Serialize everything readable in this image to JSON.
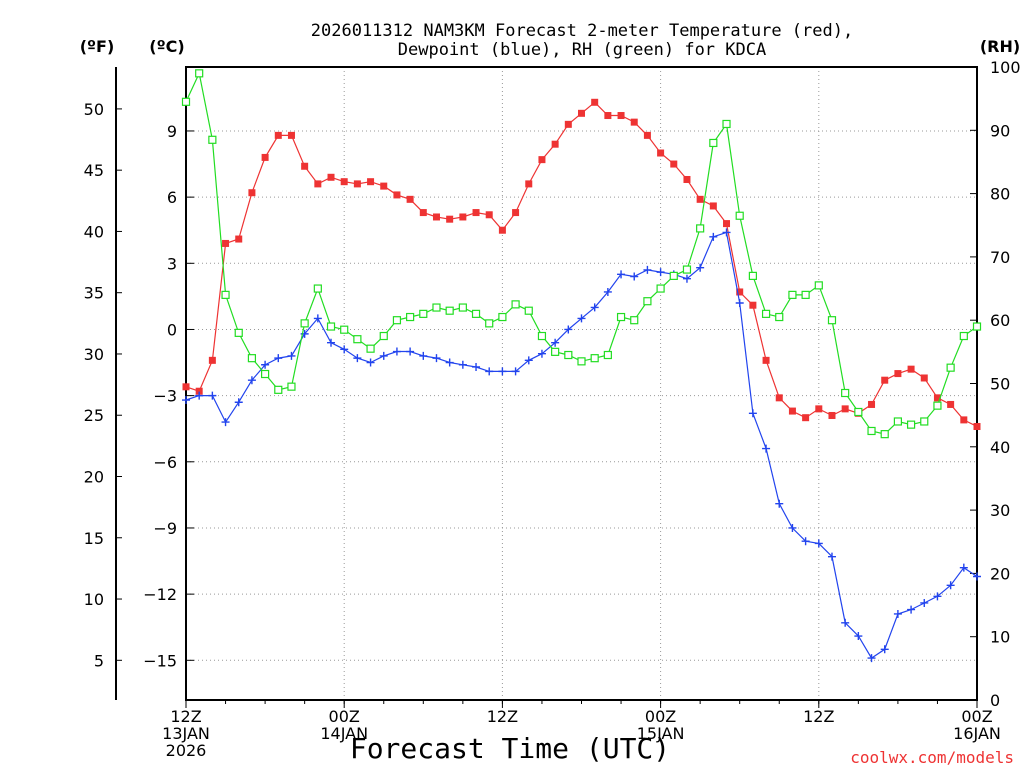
{
  "chart_data": {
    "type": "line",
    "title": [
      "2026011312 NAM3KM Forecast 2-meter Temperature (red),",
      "Dewpoint (blue), RH (green) for KDCA"
    ],
    "xlabel": "Forecast Time (UTC)",
    "credit": "coolwx.com/models",
    "units": {
      "fahrenheit": "(ºF)",
      "celsius": "(ºC)",
      "rh": "(RH)"
    },
    "x_range_hours": [
      0,
      60
    ],
    "x_ticks": [
      {
        "h": 0,
        "lines": [
          "12Z",
          "13JAN",
          "2026"
        ]
      },
      {
        "h": 12,
        "lines": [
          "00Z",
          "14JAN"
        ]
      },
      {
        "h": 24,
        "lines": [
          "12Z"
        ]
      },
      {
        "h": 36,
        "lines": [
          "00Z",
          "15JAN"
        ]
      },
      {
        "h": 48,
        "lines": [
          "12Z"
        ]
      },
      {
        "h": 60,
        "lines": [
          "00Z",
          "16JAN"
        ]
      }
    ],
    "celsius_axis": {
      "range": [
        -16.8,
        11.9
      ],
      "ticks": [
        "9",
        "6",
        "3",
        "0",
        "−3",
        "−6",
        "−9",
        "−12",
        "−15"
      ]
    },
    "fahrenheit_axis": {
      "ticks": [
        "50",
        "45",
        "40",
        "35",
        "30",
        "25",
        "20",
        "15",
        "10",
        "5"
      ]
    },
    "rh_axis": {
      "range": [
        0,
        100
      ],
      "ticks": [
        "100",
        "90",
        "80",
        "70",
        "60",
        "50",
        "40",
        "30",
        "20",
        "10",
        "0"
      ]
    },
    "series": [
      {
        "name": "Temperature",
        "unit": "C",
        "color": "#ee3333",
        "marker": "square-filled",
        "values": [
          -2.6,
          -2.8,
          -1.4,
          3.9,
          4.1,
          6.2,
          7.8,
          8.8,
          8.8,
          7.4,
          6.6,
          6.9,
          6.7,
          6.6,
          6.7,
          6.5,
          6.1,
          5.9,
          5.3,
          5.1,
          5.0,
          5.1,
          5.3,
          5.2,
          4.5,
          5.3,
          6.6,
          7.7,
          8.4,
          9.3,
          9.8,
          10.3,
          9.7,
          9.7,
          9.4,
          8.8,
          8.0,
          7.5,
          6.8,
          5.9,
          5.6,
          4.8,
          1.7,
          1.1,
          -1.4,
          -3.1,
          -3.7,
          -4.0,
          -3.6,
          -3.9,
          -3.6,
          -3.8,
          -3.4,
          -2.3,
          -2.0,
          -1.8,
          -2.2,
          -3.1,
          -3.4,
          -4.1,
          -4.4
        ]
      },
      {
        "name": "Dewpoint",
        "unit": "C",
        "color": "#2244ee",
        "marker": "plus",
        "values": [
          -3.2,
          -3.0,
          -3.0,
          -4.2,
          -3.3,
          -2.3,
          -1.6,
          -1.3,
          -1.2,
          -0.2,
          0.5,
          -0.6,
          -0.9,
          -1.3,
          -1.5,
          -1.2,
          -1.0,
          -1.0,
          -1.2,
          -1.3,
          -1.5,
          -1.6,
          -1.7,
          -1.9,
          -1.9,
          -1.9,
          -1.4,
          -1.1,
          -0.6,
          0.0,
          0.5,
          1.0,
          1.7,
          2.5,
          2.4,
          2.7,
          2.6,
          2.5,
          2.3,
          2.8,
          4.2,
          4.4,
          1.2,
          -3.8,
          -5.4,
          -7.9,
          -9.0,
          -9.6,
          -9.7,
          -10.3,
          -13.3,
          -13.9,
          -14.9,
          -14.5,
          -12.9,
          -12.7,
          -12.4,
          -12.1,
          -11.6,
          -10.8,
          -11.2
        ]
      },
      {
        "name": "RH",
        "unit": "%",
        "color": "#22dd22",
        "marker": "square-open",
        "values": [
          94.5,
          99.0,
          88.5,
          64.0,
          58.0,
          54.0,
          51.5,
          49.0,
          49.5,
          59.5,
          65.0,
          59.0,
          58.5,
          57.0,
          55.5,
          57.5,
          60.0,
          60.5,
          61.0,
          62.0,
          61.5,
          62.0,
          61.0,
          59.5,
          60.5,
          62.5,
          61.5,
          57.5,
          55.0,
          54.5,
          53.5,
          54.0,
          54.5,
          60.5,
          60.0,
          63.0,
          65.0,
          67.0,
          68.0,
          74.5,
          88.0,
          91.0,
          76.5,
          67.0,
          61.0,
          60.5,
          64.0,
          64.0,
          65.5,
          60.0,
          48.5,
          45.5,
          42.5,
          42.0,
          44.0,
          43.5,
          44.0,
          46.5,
          52.5,
          57.5,
          59.0
        ]
      }
    ]
  }
}
